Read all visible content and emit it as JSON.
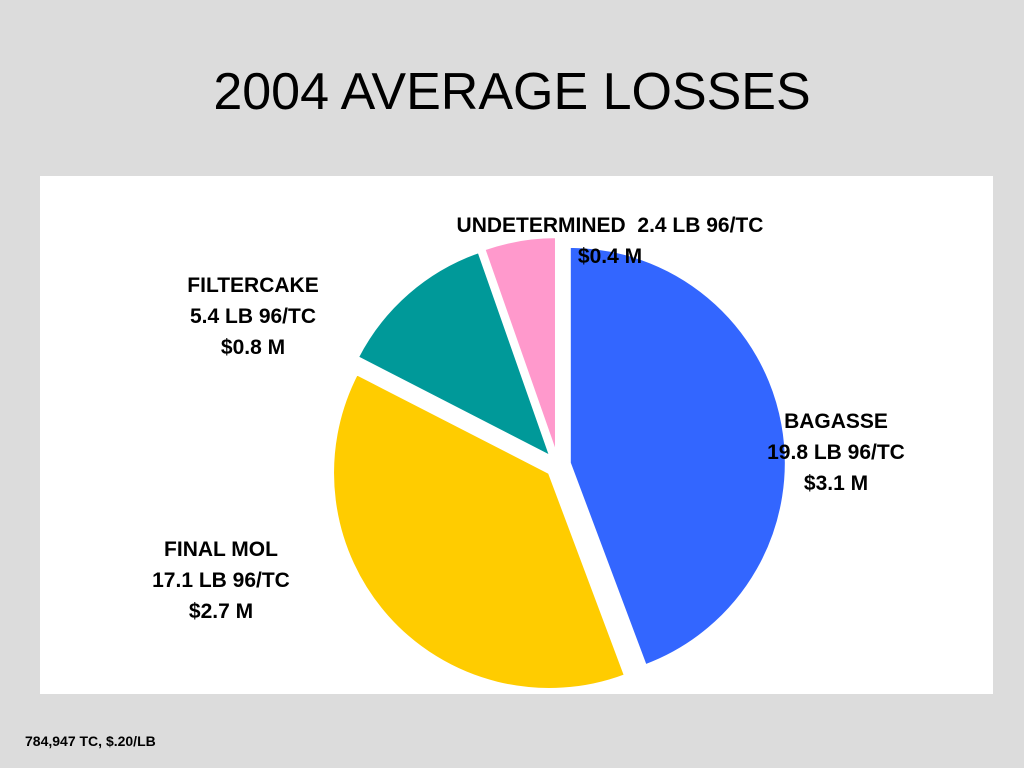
{
  "slide": {
    "title": "2004 AVERAGE LOSSES",
    "footnote": "784,947 TC, $.20/LB"
  },
  "chart_data": {
    "type": "pie",
    "categories": [
      "BAGASSE",
      "FINAL MOL",
      "FILTERCAKE",
      "UNDETERMINED"
    ],
    "values": [
      19.8,
      17.1,
      5.4,
      2.4
    ],
    "unit": "LB 96/TC",
    "dollar_values": [
      "$3.1 M",
      "$2.7 M",
      "$0.8 M",
      "$0.4 M"
    ],
    "colors": [
      "#3366ff",
      "#ffcc00",
      "#009999",
      "#ff99cc"
    ],
    "exploded": true,
    "labels": {
      "undetermined": {
        "line1": "UNDETERMINED  2.4 LB 96/TC",
        "line2": "$0.4 M"
      },
      "filtercake": {
        "line1": "FILTERCAKE",
        "line2": "5.4 LB 96/TC",
        "line3": "$0.8 M"
      },
      "bagasse": {
        "line1": "BAGASSE",
        "line2": "19.8 LB 96/TC",
        "line3": "$3.1 M"
      },
      "finalmol": {
        "line1": "FINAL MOL",
        "line2": "17.1 LB 96/TC",
        "line3": "$2.7 M"
      }
    }
  }
}
